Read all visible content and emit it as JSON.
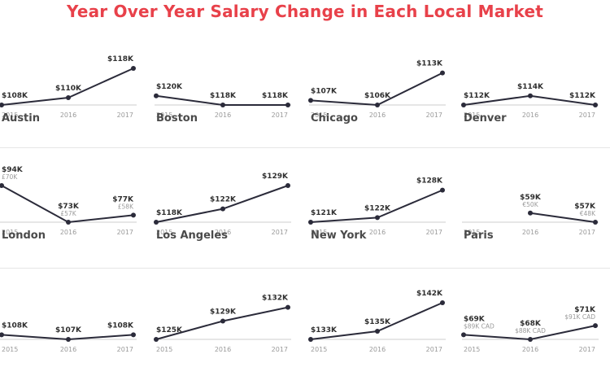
{
  "title": "Year Over Year Salary Change in Each Local Market",
  "colors": {
    "title": "#e8414a",
    "line": "#2b2b3a",
    "value": "#2f2f2f",
    "secondary": "#9a9a9a",
    "axis": "#cccccc",
    "city": "#4a4a4a"
  },
  "chart_data": [
    {
      "type": "line",
      "title": "Austin",
      "x": [
        "2015",
        "2016",
        "2017"
      ],
      "values": [
        108,
        110,
        118
      ],
      "labels": [
        "$108K",
        "$110K",
        "$118K"
      ],
      "sublabels": [
        "",
        "",
        ""
      ]
    },
    {
      "type": "line",
      "title": "Boston",
      "x": [
        "2015",
        "2016",
        "2017"
      ],
      "values": [
        120,
        118,
        118
      ],
      "labels": [
        "$120K",
        "$118K",
        "$118K"
      ],
      "sublabels": [
        "",
        "",
        ""
      ]
    },
    {
      "type": "line",
      "title": "Chicago",
      "x": [
        "2015",
        "2016",
        "2017"
      ],
      "values": [
        107,
        106,
        113
      ],
      "labels": [
        "$107K",
        "$106K",
        "$113K"
      ],
      "sublabels": [
        "",
        "",
        ""
      ]
    },
    {
      "type": "line",
      "title": "Denver",
      "x": [
        "2015",
        "2016",
        "2017"
      ],
      "values": [
        112,
        114,
        112
      ],
      "labels": [
        "$112K",
        "$114K",
        "$112K"
      ],
      "sublabels": [
        "",
        "",
        ""
      ]
    },
    {
      "type": "line",
      "title": "London",
      "x": [
        "2015",
        "2016",
        "2017"
      ],
      "values": [
        94,
        73,
        77
      ],
      "labels": [
        "$94K",
        "$73K",
        "$77K"
      ],
      "sublabels": [
        "£70K",
        "£57K",
        "£58K"
      ]
    },
    {
      "type": "line",
      "title": "Los Angeles",
      "x": [
        "2015",
        "2016",
        "2017"
      ],
      "values": [
        118,
        122,
        129
      ],
      "labels": [
        "$118K",
        "$122K",
        "$129K"
      ],
      "sublabels": [
        "",
        "",
        ""
      ]
    },
    {
      "type": "line",
      "title": "New York",
      "x": [
        "2015",
        "2016",
        "2017"
      ],
      "values": [
        121,
        122,
        128
      ],
      "labels": [
        "$121K",
        "$122K",
        "$128K"
      ],
      "sublabels": [
        "",
        "",
        ""
      ]
    },
    {
      "type": "line",
      "title": "Paris",
      "x": [
        "2016",
        "2017"
      ],
      "values": [
        59,
        57
      ],
      "labels": [
        "$59K",
        "$57K"
      ],
      "sublabels": [
        "€50K",
        "€48K"
      ]
    },
    {
      "type": "line",
      "title": "",
      "x": [
        "2015",
        "2016",
        "2017"
      ],
      "values": [
        108,
        107,
        108
      ],
      "labels": [
        "$108K",
        "$107K",
        "$108K"
      ],
      "sublabels": [
        "",
        "",
        ""
      ]
    },
    {
      "type": "line",
      "title": "",
      "x": [
        "2015",
        "2016",
        "2017"
      ],
      "values": [
        125,
        129,
        132
      ],
      "labels": [
        "$125K",
        "$129K",
        "$132K"
      ],
      "sublabels": [
        "",
        "",
        ""
      ]
    },
    {
      "type": "line",
      "title": "",
      "x": [
        "2015",
        "2016",
        "2017"
      ],
      "values": [
        133,
        135,
        142
      ],
      "labels": [
        "$133K",
        "$135K",
        "$142K"
      ],
      "sublabels": [
        "",
        "",
        ""
      ]
    },
    {
      "type": "line",
      "title": "",
      "x": [
        "2015",
        "2016",
        "2017"
      ],
      "values": [
        69,
        68,
        71
      ],
      "labels": [
        "$69K",
        "$68K",
        "$71K"
      ],
      "sublabels": [
        "$89K CAD",
        "$88K CAD",
        "$91K CAD"
      ]
    }
  ]
}
